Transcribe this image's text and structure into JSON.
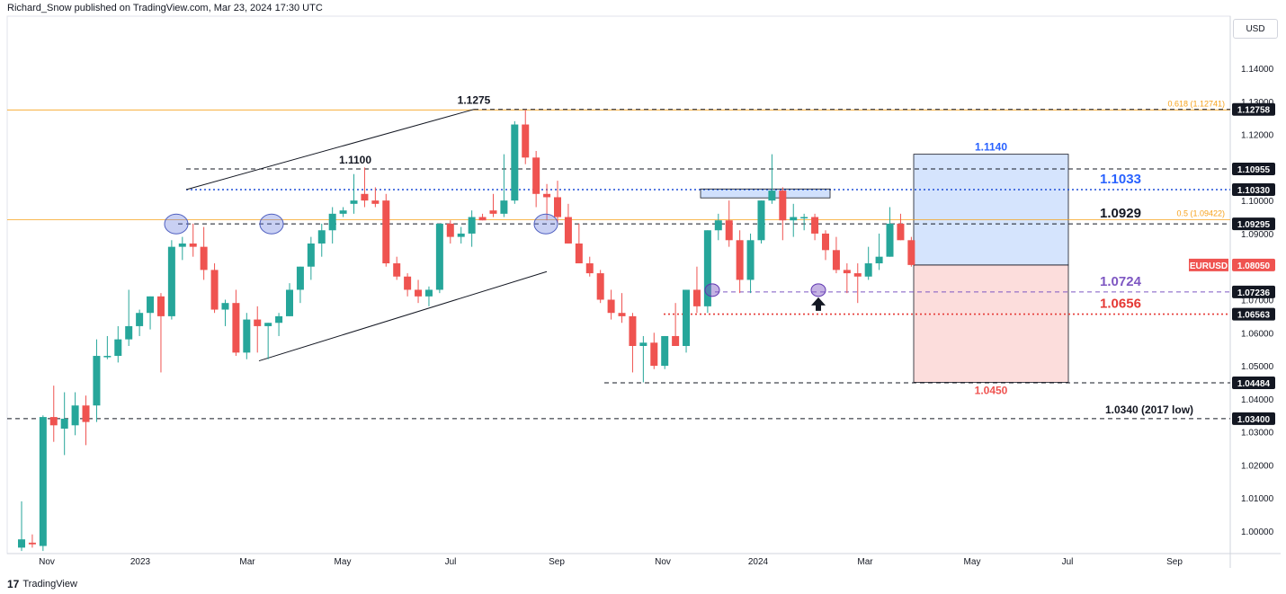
{
  "attribution": "Richard_Snow published on TradingView.com, Mar 23, 2024 17:30 UTC",
  "brand": "TradingView",
  "currency_button": "USD",
  "colors": {
    "up": "#26a69a",
    "down": "#ef5350",
    "grid": "#f0f3fa",
    "fib": "#f7a21b"
  },
  "chart_data": {
    "type": "candlestick",
    "symbol": "EURUSD",
    "timeframe": "weekly",
    "y_axis": {
      "min": 0.99,
      "max": 1.15,
      "ticks": [
        1.0,
        1.01,
        1.02,
        1.03,
        1.04,
        1.05,
        1.06,
        1.07,
        1.08,
        1.09,
        1.1,
        1.11,
        1.12,
        1.13,
        1.14
      ]
    },
    "x_ticks": [
      "Nov",
      "2023",
      "Mar",
      "May",
      "Jul",
      "Sep",
      "Nov",
      "2024",
      "Mar",
      "May",
      "Jul",
      "Sep"
    ],
    "candles": [
      {
        "o": 0.995,
        "h": 1.009,
        "l": 0.994,
        "c": 0.9975
      },
      {
        "o": 0.9965,
        "h": 0.999,
        "l": 0.995,
        "c": 0.996
      },
      {
        "o": 0.9955,
        "h": 1.035,
        "l": 0.994,
        "c": 1.0345
      },
      {
        "o": 1.0345,
        "h": 1.044,
        "l": 1.027,
        "c": 1.032
      },
      {
        "o": 1.031,
        "h": 1.042,
        "l": 1.023,
        "c": 1.034
      },
      {
        "o": 1.032,
        "h": 1.042,
        "l": 1.029,
        "c": 1.038
      },
      {
        "o": 1.038,
        "h": 1.041,
        "l": 1.026,
        "c": 1.033
      },
      {
        "o": 1.038,
        "h": 1.058,
        "l": 1.033,
        "c": 1.053
      },
      {
        "o": 1.053,
        "h": 1.059,
        "l": 1.052,
        "c": 1.053
      },
      {
        "o": 1.053,
        "h": 1.062,
        "l": 1.051,
        "c": 1.058
      },
      {
        "o": 1.058,
        "h": 1.073,
        "l": 1.056,
        "c": 1.062
      },
      {
        "o": 1.062,
        "h": 1.067,
        "l": 1.059,
        "c": 1.066
      },
      {
        "o": 1.066,
        "h": 1.071,
        "l": 1.061,
        "c": 1.071
      },
      {
        "o": 1.071,
        "h": 1.072,
        "l": 1.048,
        "c": 1.065
      },
      {
        "o": 1.065,
        "h": 1.088,
        "l": 1.064,
        "c": 1.086
      },
      {
        "o": 1.086,
        "h": 1.089,
        "l": 1.082,
        "c": 1.087
      },
      {
        "o": 1.087,
        "h": 1.093,
        "l": 1.083,
        "c": 1.086
      },
      {
        "o": 1.086,
        "h": 1.092,
        "l": 1.076,
        "c": 1.079
      },
      {
        "o": 1.079,
        "h": 1.081,
        "l": 1.066,
        "c": 1.067
      },
      {
        "o": 1.067,
        "h": 1.07,
        "l": 1.062,
        "c": 1.069
      },
      {
        "o": 1.069,
        "h": 1.073,
        "l": 1.053,
        "c": 1.054
      },
      {
        "o": 1.054,
        "h": 1.066,
        "l": 1.052,
        "c": 1.064
      },
      {
        "o": 1.064,
        "h": 1.068,
        "l": 1.054,
        "c": 1.062
      },
      {
        "o": 1.062,
        "h": 1.063,
        "l": 1.052,
        "c": 1.063
      },
      {
        "o": 1.063,
        "h": 1.066,
        "l": 1.059,
        "c": 1.065
      },
      {
        "o": 1.065,
        "h": 1.075,
        "l": 1.065,
        "c": 1.073
      },
      {
        "o": 1.073,
        "h": 1.08,
        "l": 1.069,
        "c": 1.08
      },
      {
        "o": 1.08,
        "h": 1.089,
        "l": 1.076,
        "c": 1.087
      },
      {
        "o": 1.087,
        "h": 1.093,
        "l": 1.083,
        "c": 1.091
      },
      {
        "o": 1.091,
        "h": 1.098,
        "l": 1.087,
        "c": 1.096
      },
      {
        "o": 1.096,
        "h": 1.098,
        "l": 1.095,
        "c": 1.097
      },
      {
        "o": 1.099,
        "h": 1.108,
        "l": 1.096,
        "c": 1.1
      },
      {
        "o": 1.102,
        "h": 1.11,
        "l": 1.098,
        "c": 1.1
      },
      {
        "o": 1.1,
        "h": 1.104,
        "l": 1.098,
        "c": 1.099
      },
      {
        "o": 1.1,
        "h": 1.102,
        "l": 1.08,
        "c": 1.081
      },
      {
        "o": 1.081,
        "h": 1.083,
        "l": 1.076,
        "c": 1.077
      },
      {
        "o": 1.077,
        "h": 1.078,
        "l": 1.071,
        "c": 1.073
      },
      {
        "o": 1.073,
        "h": 1.076,
        "l": 1.069,
        "c": 1.071
      },
      {
        "o": 1.071,
        "h": 1.074,
        "l": 1.068,
        "c": 1.073
      },
      {
        "o": 1.073,
        "h": 1.093,
        "l": 1.072,
        "c": 1.093
      },
      {
        "o": 1.093,
        "h": 1.094,
        "l": 1.087,
        "c": 1.089
      },
      {
        "o": 1.089,
        "h": 1.092,
        "l": 1.087,
        "c": 1.09
      },
      {
        "o": 1.09,
        "h": 1.097,
        "l": 1.086,
        "c": 1.095
      },
      {
        "o": 1.095,
        "h": 1.096,
        "l": 1.094,
        "c": 1.094
      },
      {
        "o": 1.097,
        "h": 1.102,
        "l": 1.095,
        "c": 1.096
      },
      {
        "o": 1.096,
        "h": 1.114,
        "l": 1.095,
        "c": 1.1
      },
      {
        "o": 1.1,
        "h": 1.124,
        "l": 1.099,
        "c": 1.123
      },
      {
        "o": 1.123,
        "h": 1.1275,
        "l": 1.111,
        "c": 1.113
      },
      {
        "o": 1.113,
        "h": 1.115,
        "l": 1.098,
        "c": 1.102
      },
      {
        "o": 1.102,
        "h": 1.105,
        "l": 1.094,
        "c": 1.101
      },
      {
        "o": 1.101,
        "h": 1.106,
        "l": 1.093,
        "c": 1.095
      },
      {
        "o": 1.095,
        "h": 1.099,
        "l": 1.087,
        "c": 1.087
      },
      {
        "o": 1.087,
        "h": 1.093,
        "l": 1.082,
        "c": 1.081
      },
      {
        "o": 1.081,
        "h": 1.083,
        "l": 1.077,
        "c": 1.078
      },
      {
        "o": 1.078,
        "h": 1.079,
        "l": 1.069,
        "c": 1.07
      },
      {
        "o": 1.07,
        "h": 1.073,
        "l": 1.064,
        "c": 1.066
      },
      {
        "o": 1.066,
        "h": 1.072,
        "l": 1.063,
        "c": 1.065
      },
      {
        "o": 1.065,
        "h": 1.066,
        "l": 1.048,
        "c": 1.056
      },
      {
        "o": 1.056,
        "h": 1.059,
        "l": 1.045,
        "c": 1.057
      },
      {
        "o": 1.057,
        "h": 1.06,
        "l": 1.049,
        "c": 1.05
      },
      {
        "o": 1.05,
        "h": 1.059,
        "l": 1.049,
        "c": 1.059
      },
      {
        "o": 1.059,
        "h": 1.069,
        "l": 1.056,
        "c": 1.056
      },
      {
        "o": 1.056,
        "h": 1.073,
        "l": 1.054,
        "c": 1.073
      },
      {
        "o": 1.073,
        "h": 1.08,
        "l": 1.066,
        "c": 1.068
      },
      {
        "o": 1.068,
        "h": 1.091,
        "l": 1.066,
        "c": 1.091
      },
      {
        "o": 1.091,
        "h": 1.096,
        "l": 1.088,
        "c": 1.094
      },
      {
        "o": 1.094,
        "h": 1.1,
        "l": 1.086,
        "c": 1.088
      },
      {
        "o": 1.088,
        "h": 1.091,
        "l": 1.072,
        "c": 1.076
      },
      {
        "o": 1.076,
        "h": 1.09,
        "l": 1.072,
        "c": 1.088
      },
      {
        "o": 1.088,
        "h": 1.1,
        "l": 1.087,
        "c": 1.1
      },
      {
        "o": 1.1,
        "h": 1.114,
        "l": 1.099,
        "c": 1.103
      },
      {
        "o": 1.103,
        "h": 1.104,
        "l": 1.088,
        "c": 1.094
      },
      {
        "o": 1.094,
        "h": 1.099,
        "l": 1.089,
        "c": 1.095
      },
      {
        "o": 1.095,
        "h": 1.096,
        "l": 1.091,
        "c": 1.095
      },
      {
        "o": 1.095,
        "h": 1.096,
        "l": 1.088,
        "c": 1.09
      },
      {
        "o": 1.09,
        "h": 1.091,
        "l": 1.082,
        "c": 1.085
      },
      {
        "o": 1.085,
        "h": 1.089,
        "l": 1.078,
        "c": 1.079
      },
      {
        "o": 1.079,
        "h": 1.081,
        "l": 1.072,
        "c": 1.078
      },
      {
        "o": 1.078,
        "h": 1.081,
        "l": 1.069,
        "c": 1.077
      },
      {
        "o": 1.077,
        "h": 1.086,
        "l": 1.076,
        "c": 1.081
      },
      {
        "o": 1.081,
        "h": 1.09,
        "l": 1.079,
        "c": 1.083
      },
      {
        "o": 1.083,
        "h": 1.098,
        "l": 1.083,
        "c": 1.093
      },
      {
        "o": 1.093,
        "h": 1.096,
        "l": 1.088,
        "c": 1.088
      },
      {
        "o": 1.088,
        "h": 1.089,
        "l": 1.08,
        "c": 1.0805
      }
    ],
    "levels": [
      {
        "price": 1.12758,
        "label": "1.1275",
        "tag": "1.12758",
        "style": "dashed",
        "color": "#131722"
      },
      {
        "price": 1.10955,
        "label": "1.1100",
        "tag": "1.10955",
        "style": "dashed",
        "color": "#131722"
      },
      {
        "price": 1.1033,
        "label": "1.1033",
        "tag": "1.10330",
        "style": "dotted",
        "color": "#1e4fd8"
      },
      {
        "price": 1.09295,
        "label": "1.0929",
        "tag": "1.09295",
        "style": "dashed",
        "color": "#131722"
      },
      {
        "price": 1.07236,
        "label": "1.0724",
        "tag": "1.07236",
        "style": "dashed",
        "color": "#7e57c2"
      },
      {
        "price": 1.06563,
        "label": "1.0656",
        "tag": "1.06563",
        "style": "dotted",
        "color": "#e53935"
      },
      {
        "price": 1.04484,
        "label": "1.0450",
        "tag": "1.04484",
        "style": "dashed",
        "color": "#131722"
      },
      {
        "price": 1.034,
        "label": "1.0340 (2017 low)",
        "tag": "1.03400",
        "style": "dashed",
        "color": "#131722"
      }
    ],
    "fib_levels": [
      {
        "price": 1.12741,
        "label": "0.618 (1.12741)"
      },
      {
        "price": 1.09422,
        "label": "0.5 (1.09422)"
      }
    ],
    "last_price": {
      "symbol": "EURUSD",
      "value": "1.08050"
    },
    "position_tool": {
      "target": "1.1140",
      "stop": "1.0450",
      "target_price": 1.114,
      "entry_price": 1.0805,
      "stop_price": 1.045
    }
  }
}
